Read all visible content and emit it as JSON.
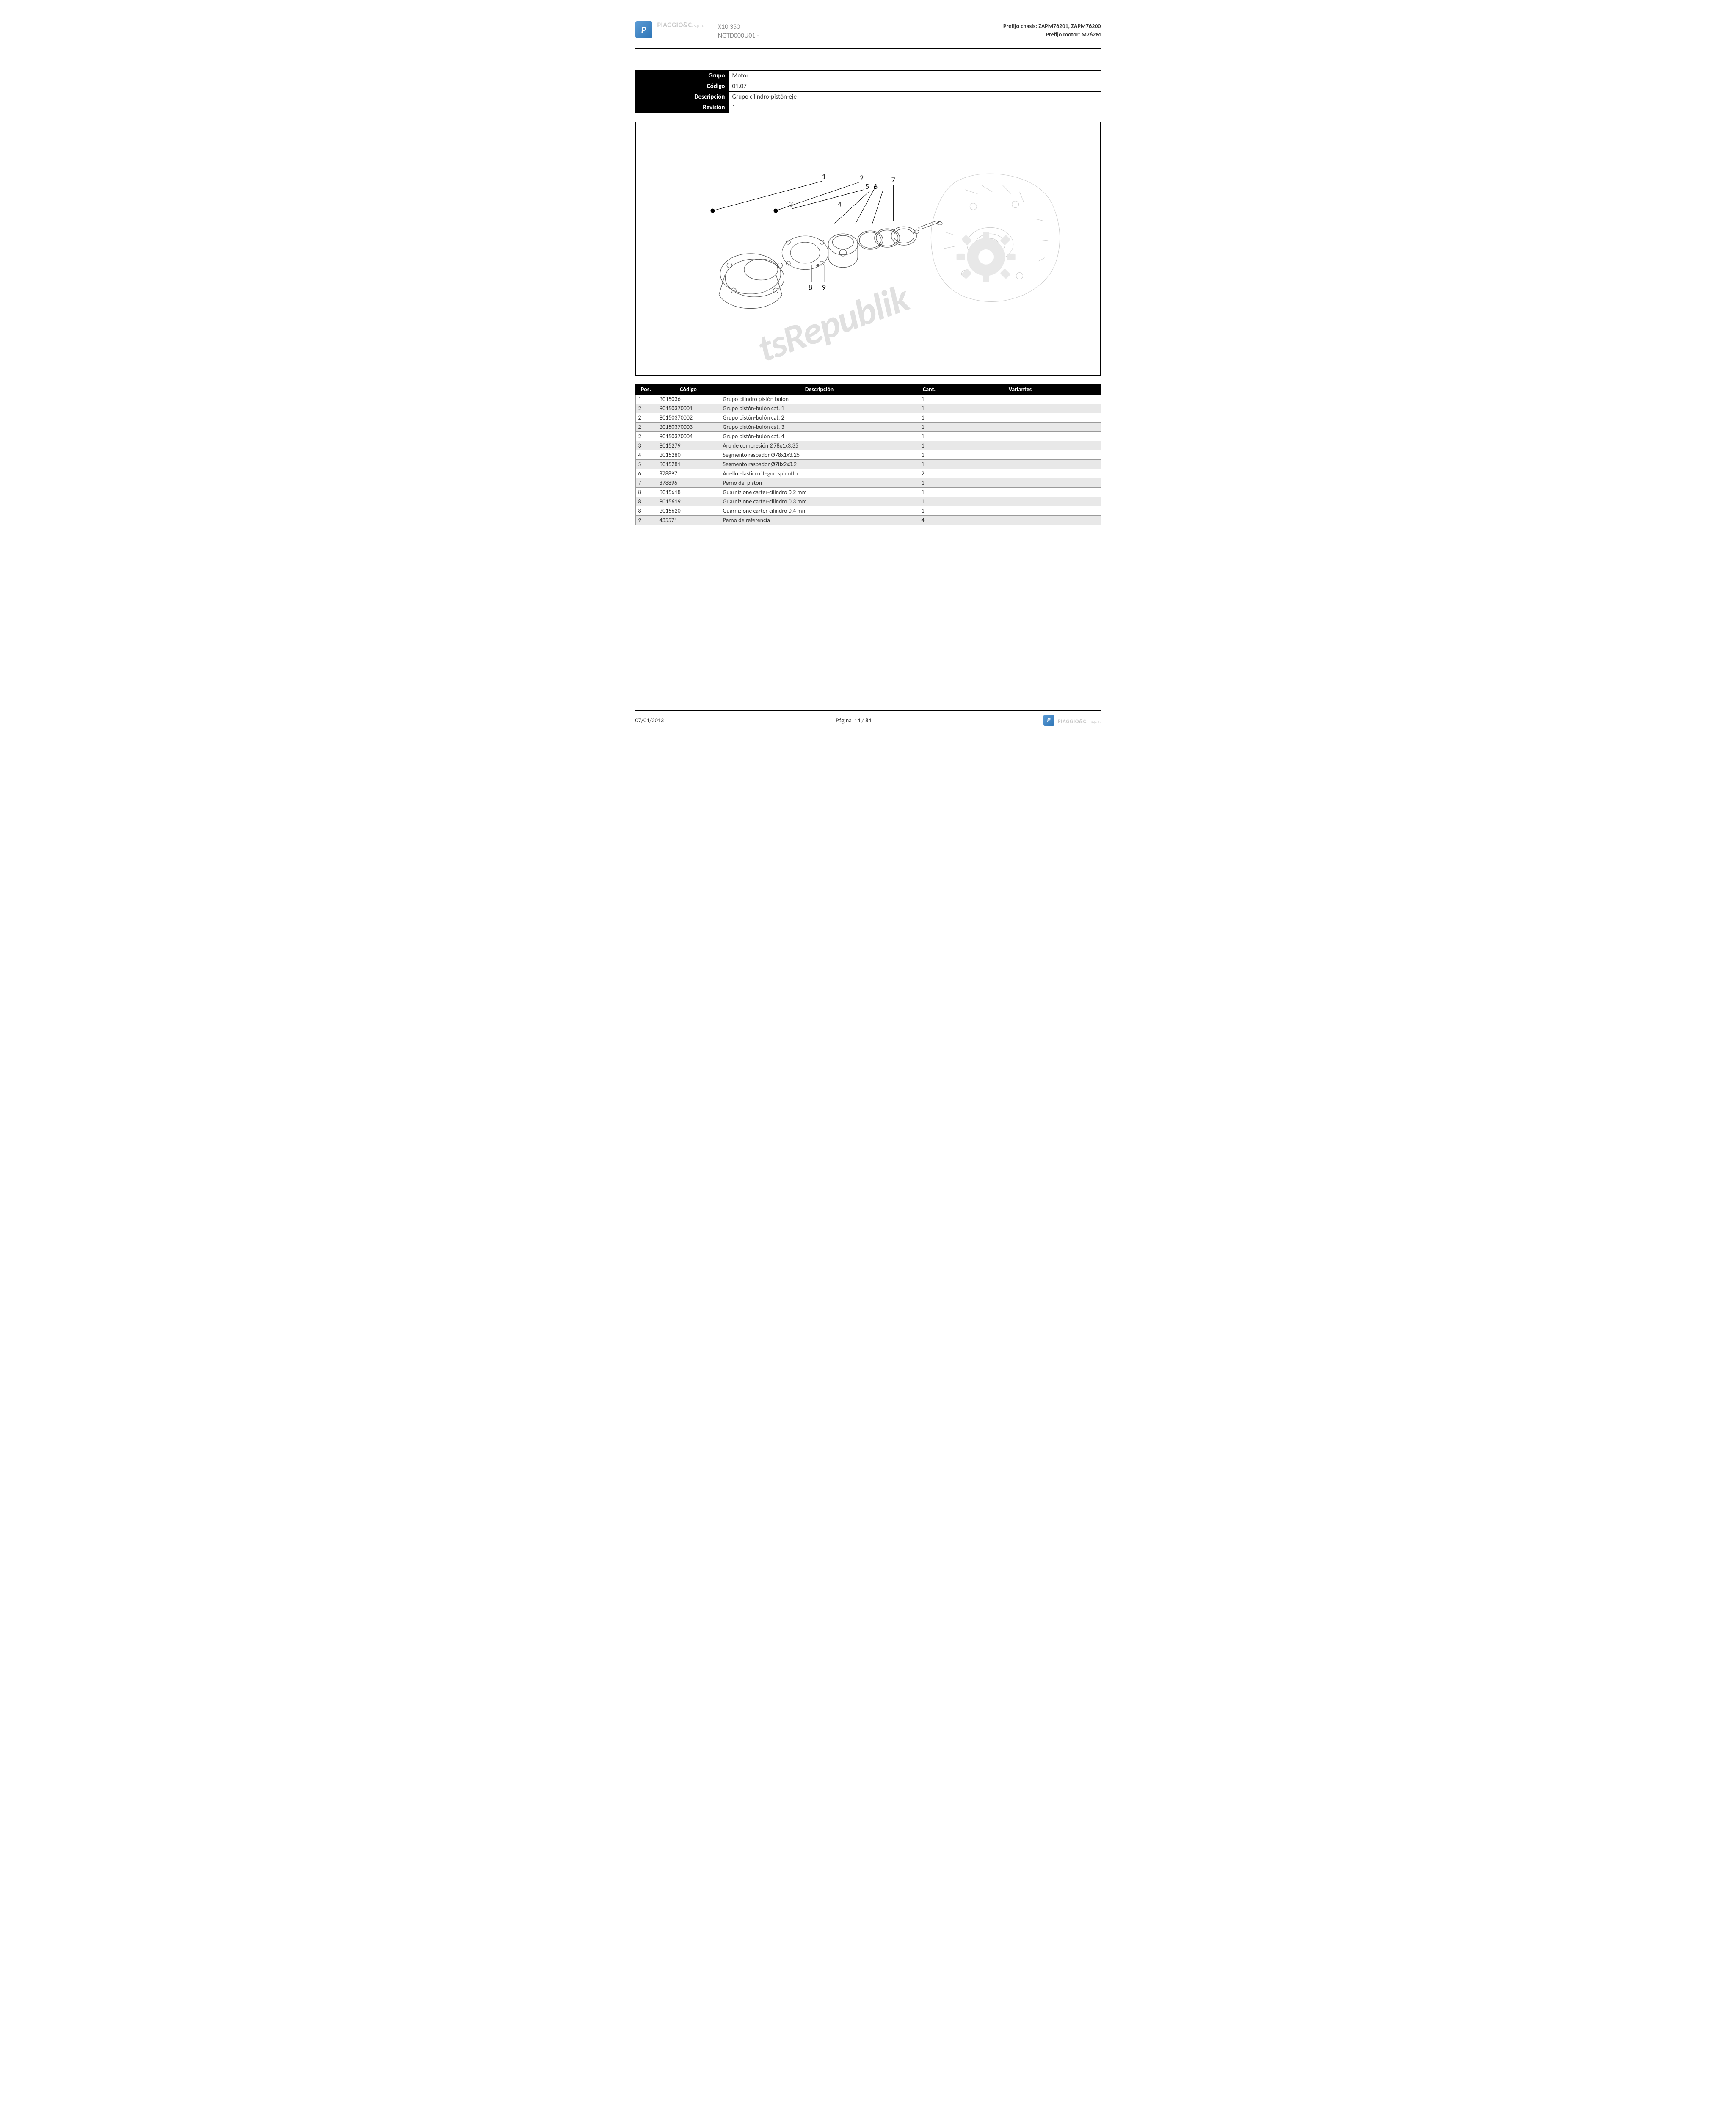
{
  "header": {
    "logo_letter": "P",
    "brand": "PIAGGIO&C.",
    "brand_suffix": "s.p.a.",
    "model_line1": "X10 350",
    "model_line2": "NGTD000U01 -",
    "chassis_prefix_label": "Prefijo chasis:",
    "chassis_prefix_value": "ZAPM76201, ZAPM76200",
    "engine_prefix_label": "Prefijo motor:",
    "engine_prefix_value": "M762M"
  },
  "info": {
    "grupo_label": "Grupo",
    "grupo_value": "Motor",
    "codigo_label": "Código",
    "codigo_value": "01.07",
    "descripcion_label": "Descripción",
    "descripcion_value": "Grupo cilindro-pistón-eje",
    "revision_label": "Revisión",
    "revision_value": "1"
  },
  "diagram": {
    "callouts": [
      "1",
      "2",
      "3",
      "4",
      "5",
      "6",
      "7",
      "8",
      "9"
    ],
    "watermark": "tsRepublik"
  },
  "parts_table": {
    "headers": {
      "pos": "Pos.",
      "codigo": "Código",
      "descripcion": "Descripción",
      "cant": "Cant.",
      "variantes": "Variantes"
    },
    "rows": [
      {
        "pos": "1",
        "code": "B015036",
        "desc": "Grupo cilindro pistón bulón",
        "qty": "1",
        "var": "",
        "alt": false
      },
      {
        "pos": "2",
        "code": "B0150370001",
        "desc": "Grupo pistón-bulón cat. 1",
        "qty": "1",
        "var": "",
        "alt": true
      },
      {
        "pos": "2",
        "code": "B0150370002",
        "desc": "Grupo pistón-bulón cat. 2",
        "qty": "1",
        "var": "",
        "alt": false
      },
      {
        "pos": "2",
        "code": "B0150370003",
        "desc": "Grupo pistón-bulón cat. 3",
        "qty": "1",
        "var": "",
        "alt": true
      },
      {
        "pos": "2",
        "code": "B0150370004",
        "desc": "Grupo pistón-bulón cat. 4",
        "qty": "1",
        "var": "",
        "alt": false
      },
      {
        "pos": "3",
        "code": "B015279",
        "desc": "Aro de compresión Ø78x1x3.35",
        "qty": "1",
        "var": "",
        "alt": true
      },
      {
        "pos": "4",
        "code": "B015280",
        "desc": "Segmento raspador Ø78x1x3.25",
        "qty": "1",
        "var": "",
        "alt": false
      },
      {
        "pos": "5",
        "code": "B015281",
        "desc": "Segmento raspador Ø78x2x3.2",
        "qty": "1",
        "var": "",
        "alt": true
      },
      {
        "pos": "6",
        "code": "878897",
        "desc": "Anello elastico ritegno spinotto",
        "qty": "2",
        "var": "",
        "alt": false
      },
      {
        "pos": "7",
        "code": "878896",
        "desc": "Perno del pistón",
        "qty": "1",
        "var": "",
        "alt": true
      },
      {
        "pos": "8",
        "code": "B015618",
        "desc": "Guarnizione carter-cilindro 0,2 mm",
        "qty": "1",
        "var": "",
        "alt": false
      },
      {
        "pos": "8",
        "code": "B015619",
        "desc": "Guarnizione carter-cilindro 0,3 mm",
        "qty": "1",
        "var": "",
        "alt": true
      },
      {
        "pos": "8",
        "code": "B015620",
        "desc": "Guarnizione carter-cilindro 0,4 mm",
        "qty": "1",
        "var": "",
        "alt": false
      },
      {
        "pos": "9",
        "code": "435571",
        "desc": "Perno de referencia",
        "qty": "4",
        "var": "",
        "alt": true
      }
    ]
  },
  "footer": {
    "date": "07/01/2013",
    "page_label": "Página",
    "page_number": "14 / 84"
  }
}
